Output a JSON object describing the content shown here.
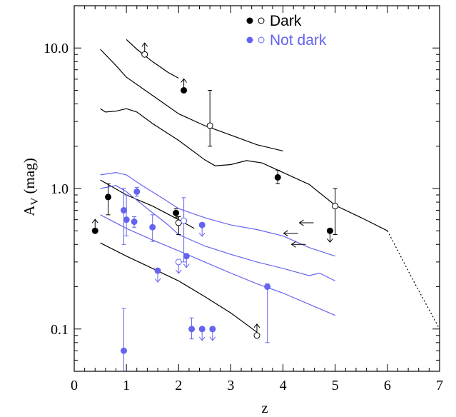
{
  "chart_data": {
    "type": "scatter",
    "xlabel": "z",
    "ylabel": "A",
    "ylabel_sub": "V",
    "ylabel_unit": " (mag)",
    "xlim": [
      0,
      7
    ],
    "ylim": [
      0.05,
      20
    ],
    "yscale": "log",
    "x_ticks": [
      {
        "value": 0,
        "label": "0"
      },
      {
        "value": 1,
        "label": "1"
      },
      {
        "value": 2,
        "label": "2"
      },
      {
        "value": 3,
        "label": "3"
      },
      {
        "value": 4,
        "label": "4"
      },
      {
        "value": 5,
        "label": "5"
      },
      {
        "value": 6,
        "label": "6"
      },
      {
        "value": 7,
        "label": "7"
      }
    ],
    "y_ticks": [
      {
        "value": 0.1,
        "label": "0.1"
      },
      {
        "value": 1.0,
        "label": "1.0"
      },
      {
        "value": 10.0,
        "label": "10.0"
      }
    ],
    "legend": {
      "position": "top-center",
      "entries": [
        {
          "label": "Dark",
          "color": "#000000"
        },
        {
          "label": "Not dark",
          "color": "#6464f0"
        }
      ]
    },
    "colors": {
      "dark": "#000000",
      "not_dark": "#6464f0"
    },
    "series": [
      {
        "name": "Dark",
        "points": [
          {
            "x": 0.4,
            "y": 0.5,
            "filled": true,
            "limit": "up"
          },
          {
            "x": 0.65,
            "y": 0.87,
            "filled": true,
            "err": [
              0.65,
              1.08
            ]
          },
          {
            "x": 1.35,
            "y": 9.0,
            "filled": false,
            "limit": "up"
          },
          {
            "x": 1.95,
            "y": 0.67,
            "filled": true,
            "err": [
              0.62,
              0.72
            ]
          },
          {
            "x": 2.0,
            "y": 0.57,
            "filled": false,
            "err": [
              0.47,
              0.63
            ]
          },
          {
            "x": 2.1,
            "y": 5.0,
            "filled": true,
            "limit": "up"
          },
          {
            "x": 2.6,
            "y": 2.8,
            "filled": false,
            "err": [
              2.0,
              5.0
            ]
          },
          {
            "x": 3.5,
            "y": 0.09,
            "filled": false,
            "limit": "up"
          },
          {
            "x": 3.9,
            "y": 1.2,
            "filled": true,
            "err": [
              1.08,
              1.35
            ]
          },
          {
            "x": 4.9,
            "y": 0.5,
            "filled": true,
            "limit": "down"
          },
          {
            "x": 5.0,
            "y": 0.75,
            "filled": false,
            "err": [
              0.47,
              1.0
            ]
          }
        ]
      },
      {
        "name": "Not dark",
        "points": [
          {
            "x": 0.95,
            "y": 0.7,
            "filled": true,
            "err": [
              0.4,
              1.0
            ]
          },
          {
            "x": 0.95,
            "y": 0.07,
            "filled": true,
            "err": [
              0.05,
              0.14
            ]
          },
          {
            "x": 1.0,
            "y": 0.6,
            "filled": true,
            "err": [
              0.46,
              0.9
            ]
          },
          {
            "x": 1.15,
            "y": 0.58,
            "filled": true,
            "err": [
              0.53,
              0.63
            ]
          },
          {
            "x": 1.2,
            "y": 0.95,
            "filled": true,
            "err": [
              0.88,
              1.02
            ]
          },
          {
            "x": 1.5,
            "y": 0.53,
            "filled": true,
            "err": [
              0.42,
              0.65
            ]
          },
          {
            "x": 1.6,
            "y": 0.26,
            "filled": true,
            "limit": "down"
          },
          {
            "x": 2.0,
            "y": 0.3,
            "filled": false,
            "limit": "down"
          },
          {
            "x": 2.1,
            "y": 0.59,
            "filled": false,
            "err": [
              0.3,
              0.86
            ]
          },
          {
            "x": 2.15,
            "y": 0.33,
            "filled": true,
            "limit": "down"
          },
          {
            "x": 2.25,
            "y": 0.1,
            "filled": true,
            "err": [
              0.085,
              0.12
            ]
          },
          {
            "x": 2.45,
            "y": 0.1,
            "filled": true,
            "limit": "down"
          },
          {
            "x": 2.45,
            "y": 0.55,
            "filled": true,
            "limit": "down"
          },
          {
            "x": 2.65,
            "y": 0.1,
            "filled": true,
            "limit": "down"
          },
          {
            "x": 3.7,
            "y": 0.2,
            "filled": true,
            "err": [
              0.08,
              0.21
            ]
          }
        ]
      }
    ],
    "left_arrows": [
      {
        "x": 4.45,
        "y": 0.57
      },
      {
        "x": 4.15,
        "y": 0.48
      },
      {
        "x": 4.3,
        "y": 0.4
      }
    ],
    "curves": [
      {
        "color": "#000000",
        "points": [
          [
            1.0,
            11.5
          ],
          [
            1.2,
            9.8
          ],
          [
            1.5,
            8.0
          ],
          [
            1.8,
            6.7
          ],
          [
            2.0,
            6.1
          ]
        ]
      },
      {
        "color": "#000000",
        "points": [
          [
            0.5,
            9.8
          ],
          [
            0.8,
            7.5
          ],
          [
            1.0,
            6.2
          ],
          [
            1.5,
            4.6
          ],
          [
            2.0,
            3.4
          ],
          [
            2.5,
            2.8
          ],
          [
            3.0,
            2.4
          ],
          [
            3.5,
            2.05
          ],
          [
            4.0,
            1.85
          ]
        ]
      },
      {
        "color": "#000000",
        "points": [
          [
            0.5,
            3.7
          ],
          [
            0.6,
            3.5
          ],
          [
            0.8,
            3.55
          ],
          [
            1.0,
            3.7
          ],
          [
            1.2,
            3.5
          ],
          [
            1.5,
            2.9
          ],
          [
            2.0,
            2.2
          ],
          [
            2.5,
            1.6
          ],
          [
            2.7,
            1.45
          ],
          [
            3.0,
            1.48
          ],
          [
            3.3,
            1.58
          ],
          [
            3.6,
            1.52
          ],
          [
            4.0,
            1.3
          ],
          [
            4.5,
            1.07
          ],
          [
            5.0,
            0.76
          ],
          [
            5.5,
            0.62
          ],
          [
            6.0,
            0.5
          ]
        ]
      },
      {
        "color": "#000000",
        "points": [
          [
            0.5,
            1.15
          ],
          [
            1.0,
            0.9
          ],
          [
            1.5,
            0.75
          ],
          [
            2.0,
            0.6
          ],
          [
            2.3,
            0.52
          ]
        ]
      },
      {
        "color": "#000000",
        "points": [
          [
            0.5,
            0.41
          ],
          [
            1.0,
            0.33
          ],
          [
            1.5,
            0.27
          ],
          [
            2.0,
            0.22
          ],
          [
            2.5,
            0.17
          ],
          [
            3.0,
            0.13
          ],
          [
            3.5,
            0.095
          ]
        ]
      },
      {
        "color": "#000000",
        "dashed": true,
        "points": [
          [
            6.0,
            0.5
          ],
          [
            6.5,
            0.22
          ],
          [
            7.0,
            0.1
          ]
        ]
      },
      {
        "color": "#6464f0",
        "points": [
          [
            0.5,
            1.25
          ],
          [
            0.8,
            1.3
          ],
          [
            1.0,
            1.25
          ],
          [
            1.3,
            1.05
          ],
          [
            1.7,
            0.85
          ],
          [
            2.0,
            0.72
          ],
          [
            2.5,
            0.62
          ],
          [
            3.0,
            0.55
          ],
          [
            3.5,
            0.51
          ],
          [
            4.0,
            0.46
          ],
          [
            4.5,
            0.38
          ],
          [
            5.0,
            0.33
          ]
        ]
      },
      {
        "color": "#6464f0",
        "points": [
          [
            0.5,
            1.0
          ],
          [
            0.8,
            1.05
          ],
          [
            1.0,
            0.95
          ],
          [
            1.4,
            0.72
          ],
          [
            1.8,
            0.55
          ],
          [
            2.0,
            0.47
          ],
          [
            2.5,
            0.39
          ],
          [
            3.0,
            0.34
          ],
          [
            3.5,
            0.3
          ],
          [
            4.0,
            0.27
          ],
          [
            4.5,
            0.24
          ],
          [
            4.7,
            0.25
          ],
          [
            5.0,
            0.22
          ]
        ]
      },
      {
        "color": "#6464f0",
        "points": [
          [
            0.5,
            0.65
          ],
          [
            1.0,
            0.52
          ],
          [
            1.5,
            0.43
          ],
          [
            2.0,
            0.36
          ],
          [
            2.5,
            0.3
          ],
          [
            3.0,
            0.25
          ],
          [
            3.5,
            0.21
          ],
          [
            4.0,
            0.18
          ],
          [
            4.5,
            0.15
          ],
          [
            5.0,
            0.125
          ]
        ]
      }
    ]
  }
}
